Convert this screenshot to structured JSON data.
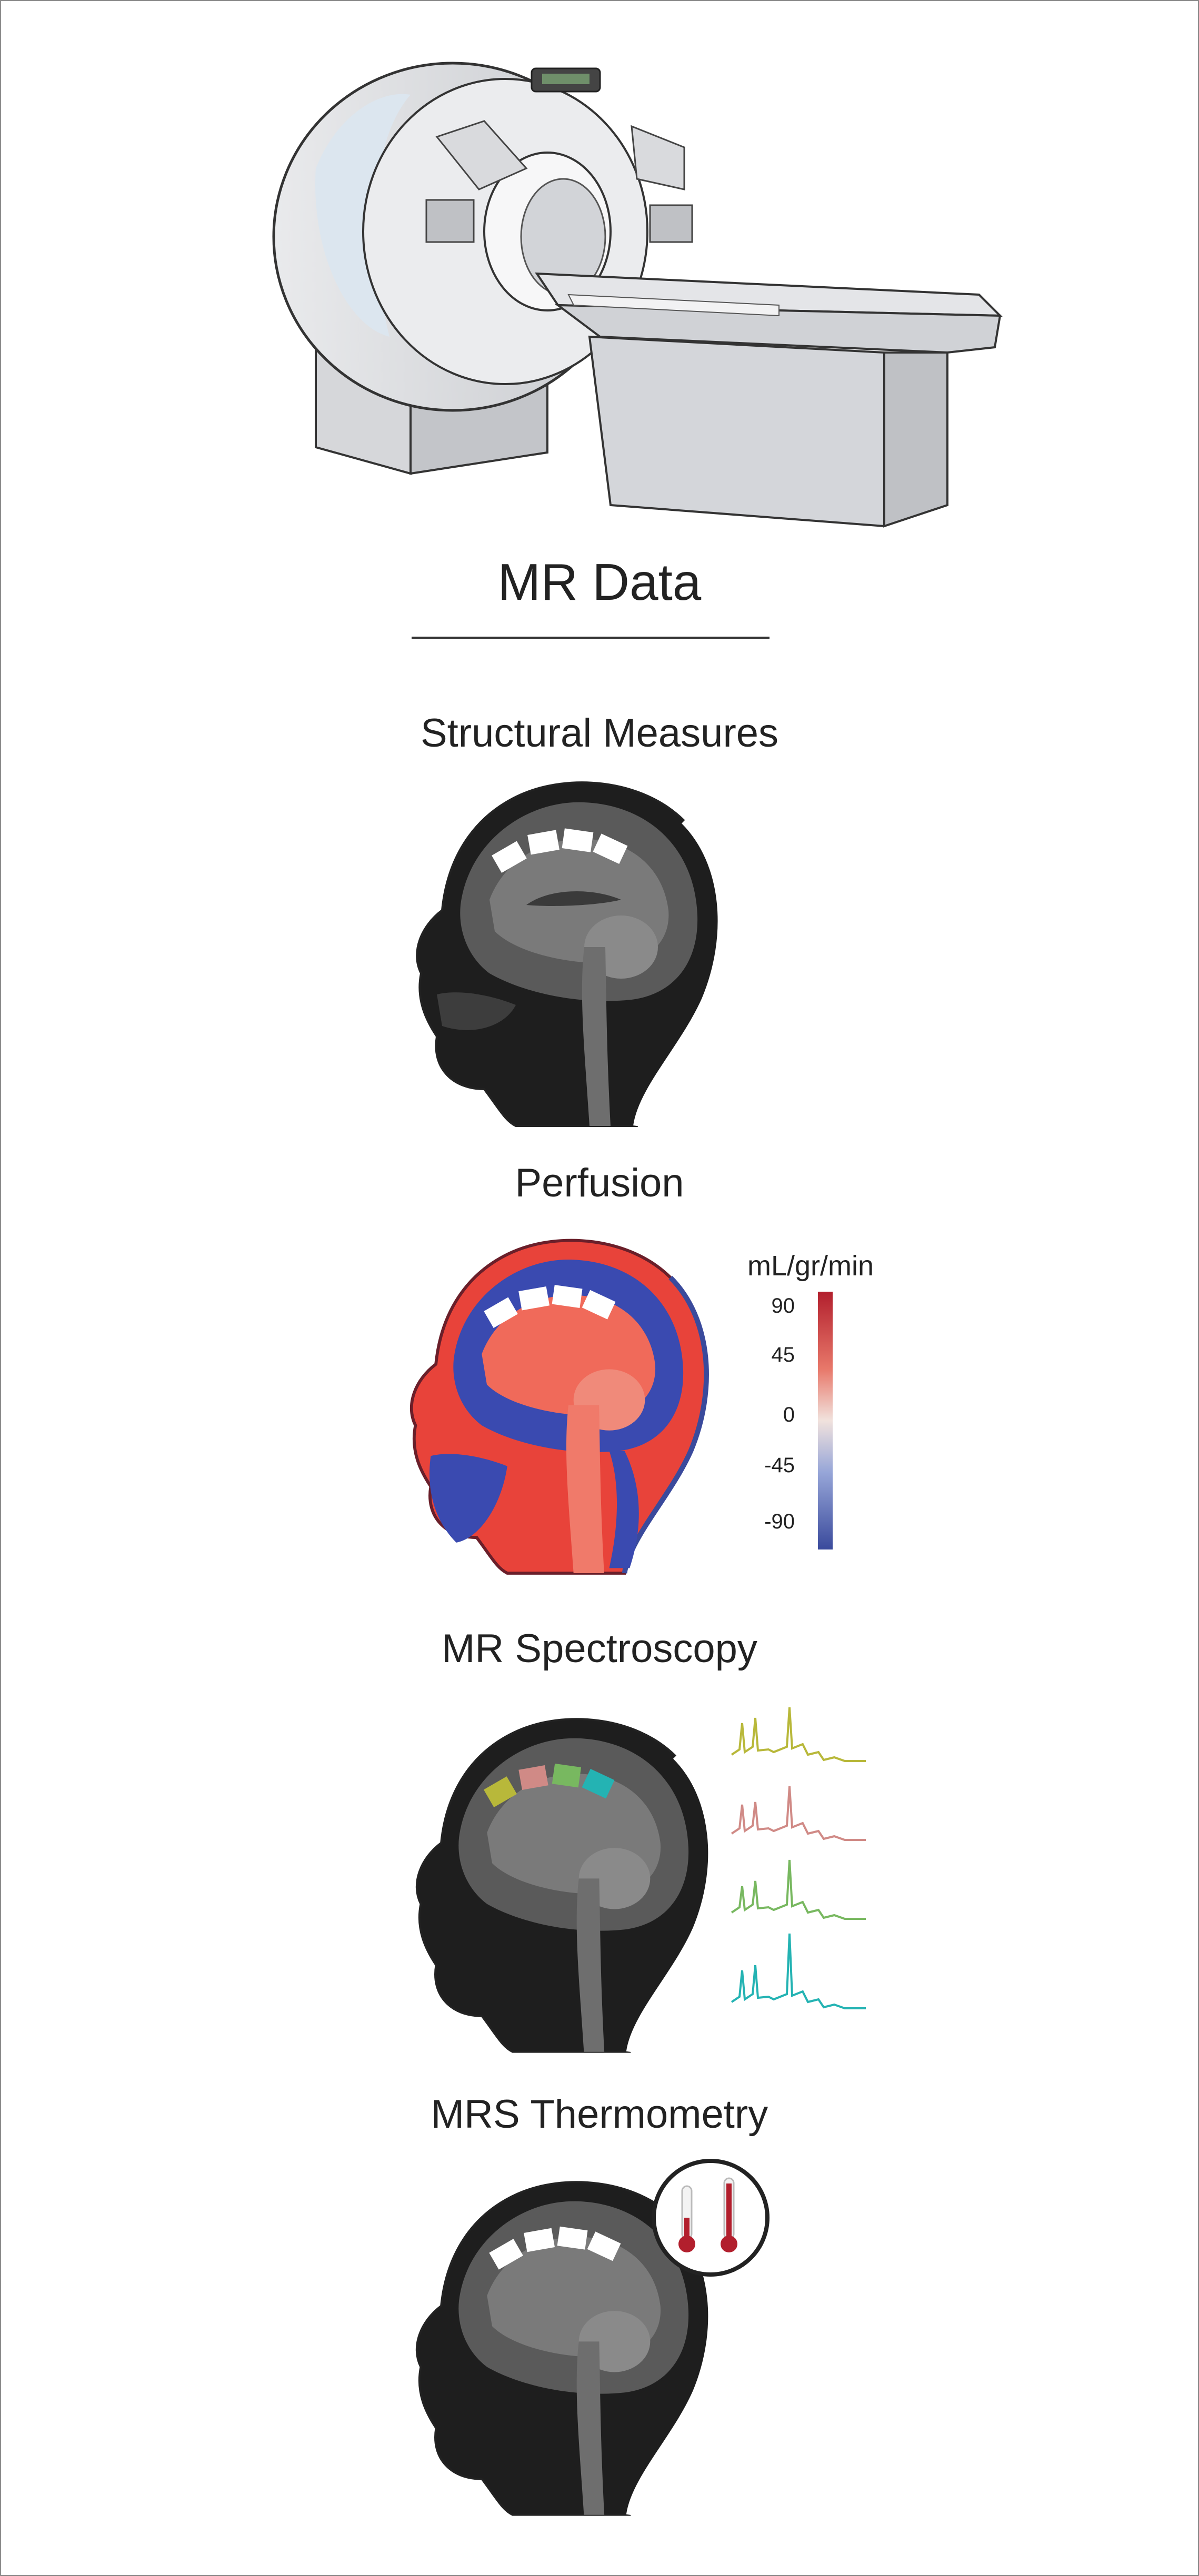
{
  "header": {
    "title": "MR Data"
  },
  "sections": [
    {
      "id": "structural",
      "title": "Structural Measures"
    },
    {
      "id": "perfusion",
      "title": "Perfusion"
    },
    {
      "id": "spectroscopy",
      "title": "MR Spectroscopy"
    },
    {
      "id": "thermometry",
      "title": "MRS Thermometry"
    }
  ],
  "perfusion_legend": {
    "unit": "mL/gr/min",
    "ticks": [
      "90",
      "45",
      "0",
      "-45",
      "-90"
    ],
    "colors": {
      "high": "#b21f2d",
      "mid": "#f1e2dd",
      "low": "#3a4a9c"
    }
  },
  "spectra_colors": [
    "#b8b83a",
    "#d08a86",
    "#78b860",
    "#24b3b3"
  ],
  "icons": [
    "mri-scanner-icon",
    "head-sagittal-icon",
    "thermometer-icon"
  ]
}
